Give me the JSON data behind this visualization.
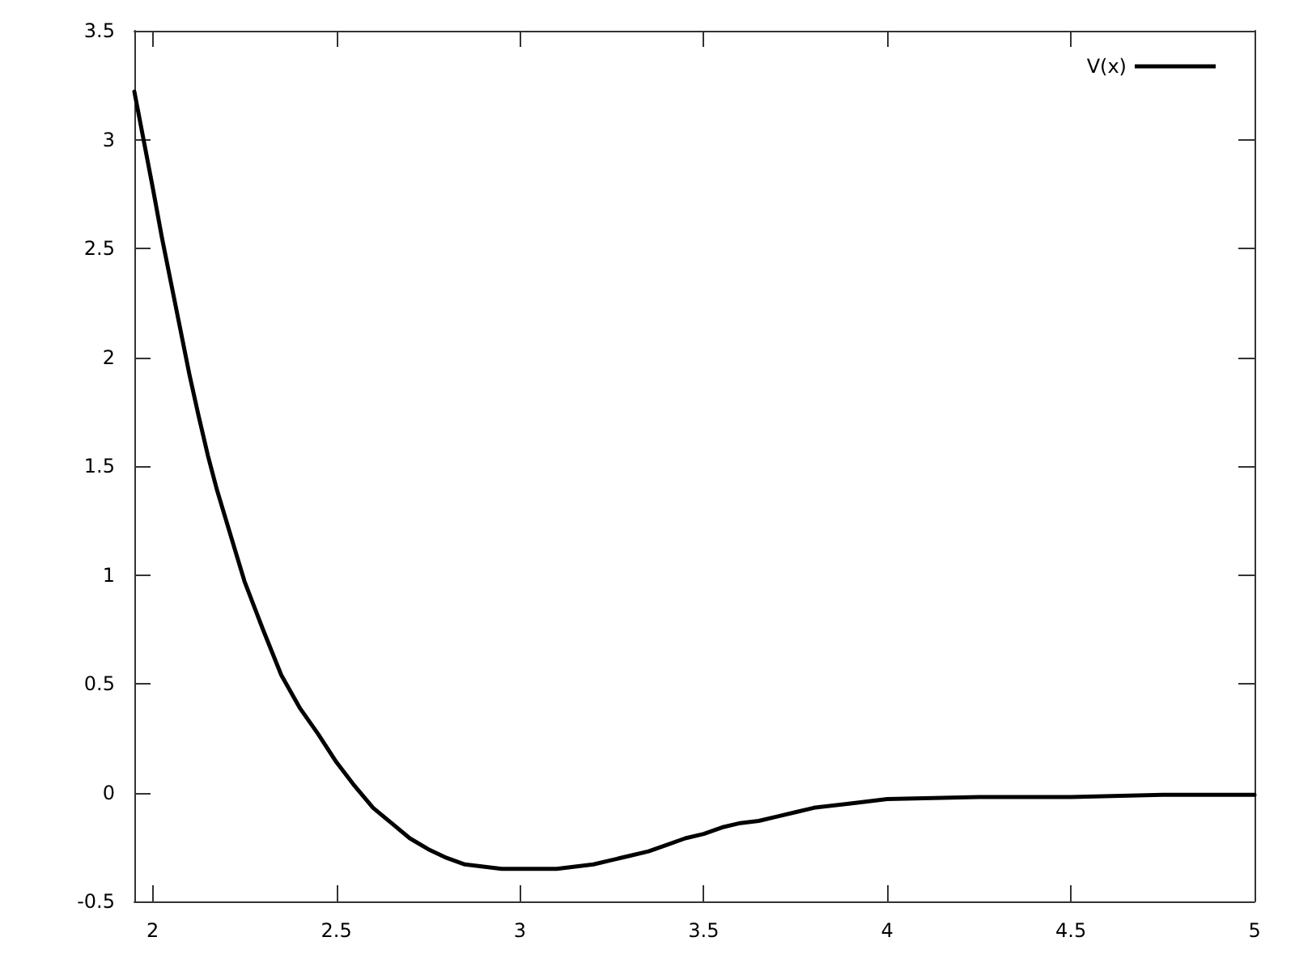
{
  "chart_data": {
    "type": "line",
    "x": [
      1.95,
      1.975,
      2.0,
      2.025,
      2.05,
      2.075,
      2.1,
      2.125,
      2.15,
      2.175,
      2.2,
      2.225,
      2.25,
      2.3,
      2.35,
      2.4,
      2.45,
      2.5,
      2.55,
      2.6,
      2.65,
      2.7,
      2.75,
      2.8,
      2.85,
      2.9,
      2.95,
      3.0,
      3.05,
      3.1,
      3.15,
      3.2,
      3.25,
      3.3,
      3.35,
      3.4,
      3.45,
      3.5,
      3.55,
      3.6,
      3.65,
      3.7,
      3.75,
      3.8,
      3.9,
      4.0,
      4.25,
      4.5,
      4.75,
      5.0
    ],
    "series": [
      {
        "name": "V(x)",
        "color": "#000000",
        "values": [
          3.22,
          3.0,
          2.78,
          2.55,
          2.34,
          2.13,
          1.92,
          1.73,
          1.55,
          1.39,
          1.25,
          1.11,
          0.97,
          0.75,
          0.54,
          0.39,
          0.27,
          0.14,
          0.03,
          -0.07,
          -0.14,
          -0.21,
          -0.26,
          -0.3,
          -0.33,
          -0.34,
          -0.35,
          -0.35,
          -0.35,
          -0.35,
          -0.34,
          -0.33,
          -0.31,
          -0.29,
          -0.27,
          -0.24,
          -0.21,
          -0.19,
          -0.16,
          -0.14,
          -0.13,
          -0.11,
          -0.09,
          -0.07,
          -0.05,
          -0.03,
          -0.02,
          -0.02,
          -0.01,
          -0.01
        ]
      }
    ],
    "xlim": [
      1.95,
      5
    ],
    "xticks": [
      2,
      2.5,
      3,
      3.5,
      4,
      4.5,
      5
    ],
    "ylim": [
      -0.5,
      3.5
    ],
    "yticks": [
      -0.5,
      0,
      0.5,
      1,
      1.5,
      2,
      2.5,
      3,
      3.5
    ],
    "legend": "top right",
    "line_style": "solid",
    "grid": false
  }
}
